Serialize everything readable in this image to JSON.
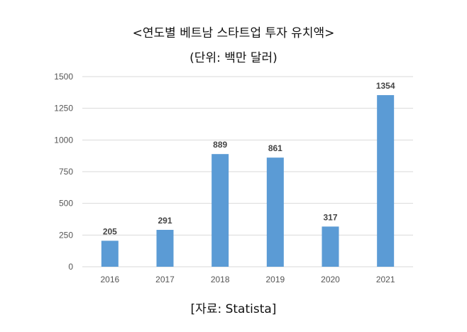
{
  "chart_data": {
    "type": "bar",
    "title": "<연도별 베트남 스타트업 투자 유치액>",
    "subtitle": "(단위: 백만 달러)",
    "source": "[자료: Statista]",
    "categories": [
      "2016",
      "2017",
      "2018",
      "2019",
      "2020",
      "2021"
    ],
    "values": [
      205,
      291,
      889,
      861,
      317,
      1354
    ],
    "value_labels": [
      "205",
      "291",
      "889",
      "861",
      "317",
      "1354"
    ],
    "yticks": [
      0,
      250,
      500,
      750,
      1000,
      1250,
      1500
    ],
    "ytick_labels": [
      "0",
      "250",
      "500",
      "750",
      "1000",
      "1250",
      "1500"
    ],
    "ylim": [
      0,
      1500
    ],
    "xlabel": "",
    "ylabel": "",
    "grid": true,
    "legend": "none",
    "bar_color": "#5b9bd5",
    "grid_color": "#d9d9d9"
  }
}
